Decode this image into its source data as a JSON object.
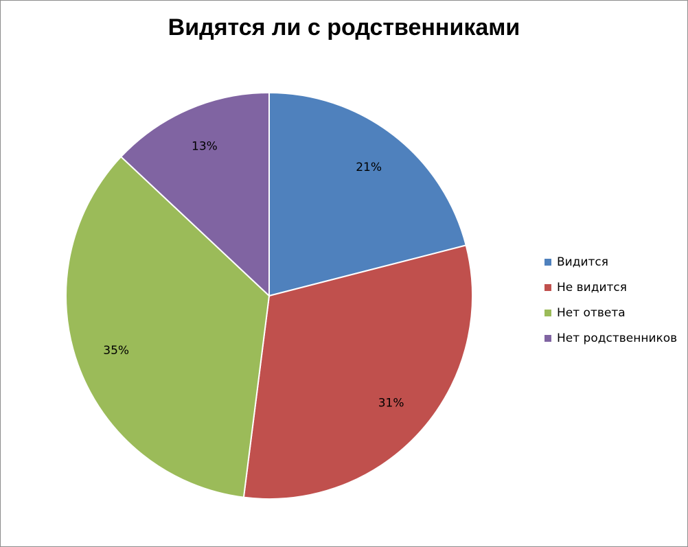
{
  "chart_data": {
    "type": "pie",
    "title": "Видятся ли с родственниками",
    "legend_position": "right",
    "slices": [
      {
        "label": "Видится",
        "value": 21,
        "data_label": "21%",
        "color": "#4F81BD"
      },
      {
        "label": "Не видится",
        "value": 31,
        "data_label": "31%",
        "color": "#C0504D"
      },
      {
        "label": "Нет ответа",
        "value": 35,
        "data_label": "35%",
        "color": "#9BBB59"
      },
      {
        "label": "Нет родственников",
        "value": 13,
        "data_label": "13%",
        "color": "#8064A2"
      }
    ]
  }
}
